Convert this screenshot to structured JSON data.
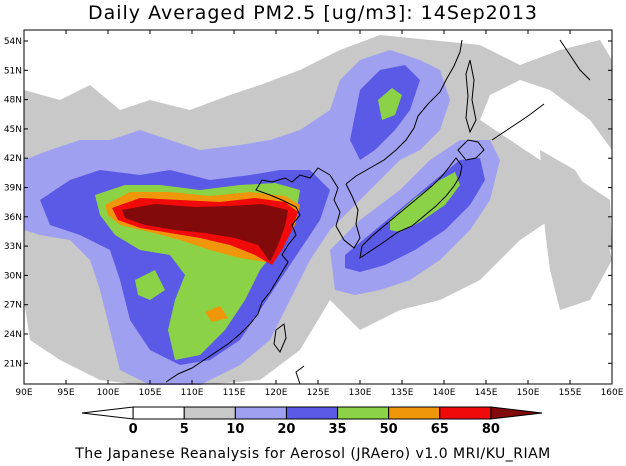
{
  "title": "Daily Averaged PM2.5 [ug/m3]: 14Sep2013",
  "credit": "The Japanese Reanalysis for Aerosol (JRAero) v1.0 MRI/KU_RIAM",
  "lat_labels": [
    "54N",
    "51N",
    "48N",
    "45N",
    "42N",
    "39N",
    "36N",
    "33N",
    "30N",
    "27N",
    "24N",
    "21N"
  ],
  "lon_labels": [
    "90E",
    "95E",
    "100E",
    "105E",
    "110E",
    "115E",
    "120E",
    "125E",
    "130E",
    "135E",
    "140E",
    "145E",
    "150E",
    "155E",
    "160E"
  ],
  "colorbar": {
    "ticks": [
      "0",
      "5",
      "10",
      "20",
      "35",
      "50",
      "65",
      "80"
    ],
    "colors": [
      "#ffffff",
      "#c8c8c8",
      "#a0a0f0",
      "#5a5ae6",
      "#8cd246",
      "#f0960a",
      "#f00a0a",
      "#820a0a"
    ]
  }
}
